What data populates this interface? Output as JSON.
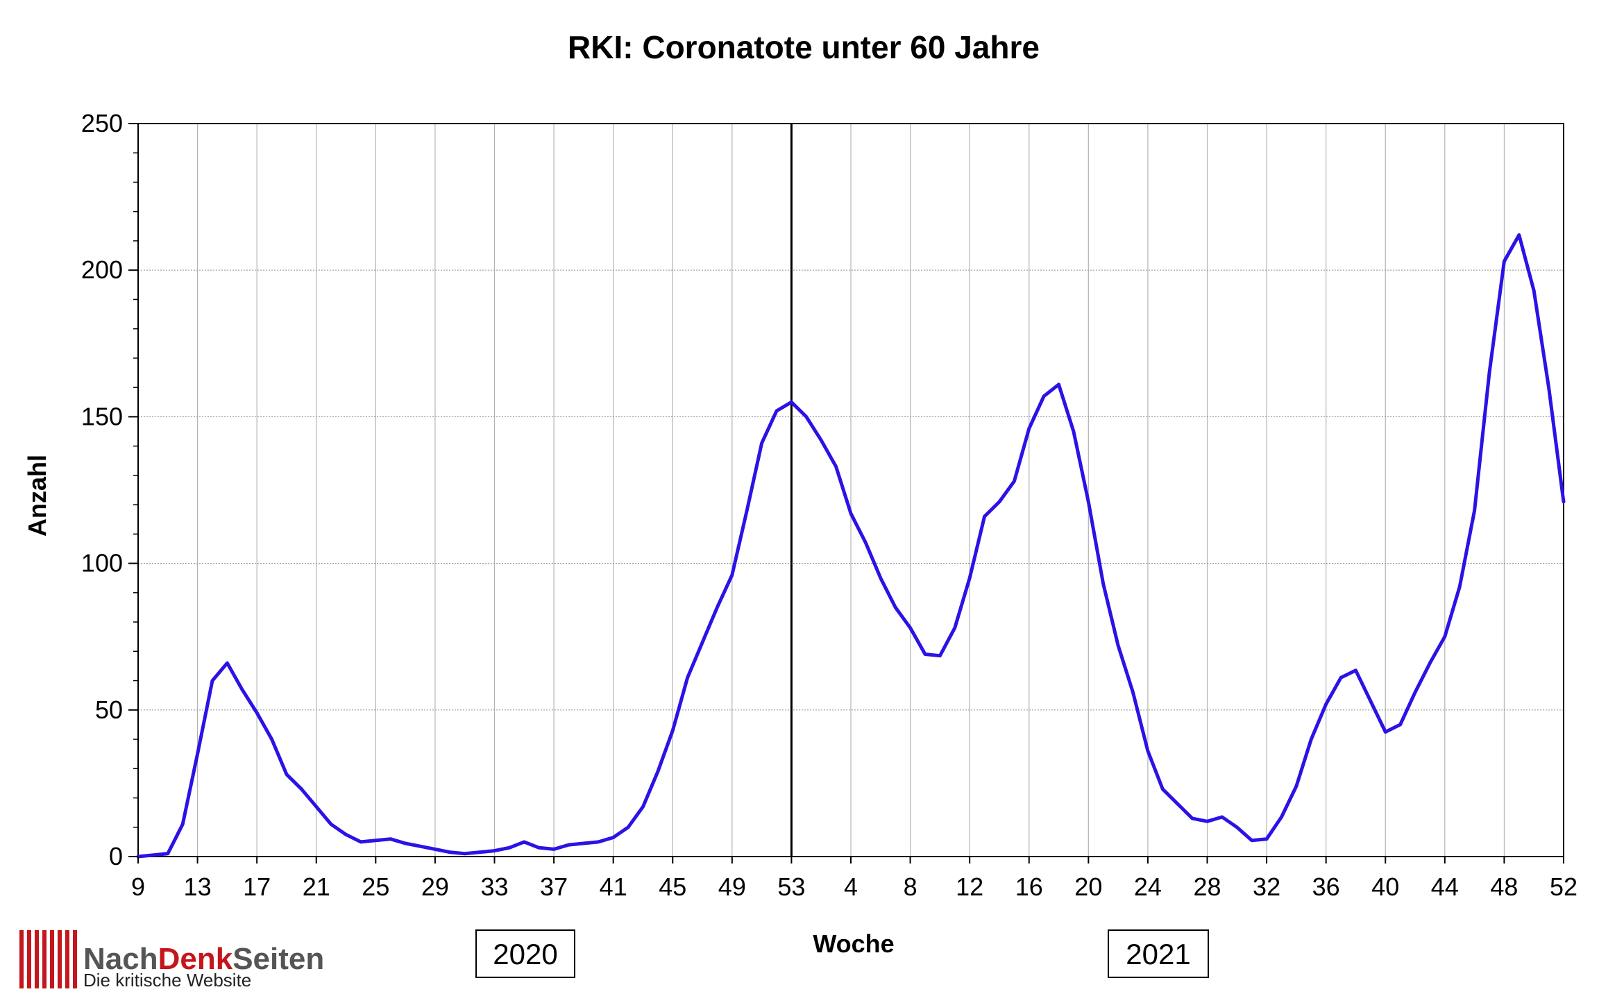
{
  "logo": {
    "part1": "Nach",
    "part2": "Denk",
    "part3": "Seiten",
    "tagline": "Die kritische Website",
    "colors": {
      "part1": "#555555",
      "part2": "#c4161c",
      "part3": "#555555",
      "bars": "#c4161c"
    }
  },
  "chart_data": {
    "type": "line",
    "title": "RKI: Coronatote unter 60 Jahre",
    "xlabel": "Woche",
    "ylabel": "Anzahl",
    "ylim": [
      0,
      250
    ],
    "yticks": [
      0,
      50,
      100,
      150,
      200,
      250
    ],
    "grid": true,
    "x_tick_labels": [
      "9",
      "13",
      "17",
      "21",
      "25",
      "29",
      "33",
      "37",
      "41",
      "45",
      "49",
      "53",
      "4",
      "8",
      "12",
      "16",
      "20",
      "24",
      "28",
      "32",
      "36",
      "40",
      "44",
      "48",
      "52"
    ],
    "year_labels": [
      "2020",
      "2021"
    ],
    "year_divider_after": "2020-W53",
    "line_color": "#2b12e6",
    "series": [
      {
        "x": [
          "2020-W9",
          "2020-W10",
          "2020-W11",
          "2020-W12",
          "2020-W13",
          "2020-W14",
          "2020-W15",
          "2020-W16",
          "2020-W17",
          "2020-W18",
          "2020-W19",
          "2020-W20",
          "2020-W21",
          "2020-W22",
          "2020-W23",
          "2020-W24",
          "2020-W25",
          "2020-W26",
          "2020-W27",
          "2020-W28",
          "2020-W29",
          "2020-W30",
          "2020-W31",
          "2020-W32",
          "2020-W33",
          "2020-W34",
          "2020-W35",
          "2020-W36",
          "2020-W37",
          "2020-W38",
          "2020-W39",
          "2020-W40",
          "2020-W41",
          "2020-W42",
          "2020-W43",
          "2020-W44",
          "2020-W45",
          "2020-W46",
          "2020-W47",
          "2020-W48",
          "2020-W49",
          "2020-W50",
          "2020-W51",
          "2020-W52",
          "2020-W53",
          "2021-W1",
          "2021-W2",
          "2021-W3",
          "2021-W4",
          "2021-W5",
          "2021-W6",
          "2021-W7",
          "2021-W8",
          "2021-W9",
          "2021-W10",
          "2021-W11",
          "2021-W12",
          "2021-W13",
          "2021-W14",
          "2021-W15",
          "2021-W16",
          "2021-W17",
          "2021-W18",
          "2021-W19",
          "2021-W20",
          "2021-W21",
          "2021-W22",
          "2021-W23",
          "2021-W24",
          "2021-W25",
          "2021-W26",
          "2021-W27",
          "2021-W28",
          "2021-W29",
          "2021-W30",
          "2021-W31",
          "2021-W32",
          "2021-W33",
          "2021-W34",
          "2021-W35",
          "2021-W36",
          "2021-W37",
          "2021-W38",
          "2021-W39",
          "2021-W40",
          "2021-W41",
          "2021-W42",
          "2021-W43",
          "2021-W44",
          "2021-W45",
          "2021-W46",
          "2021-W47",
          "2021-W48",
          "2021-W49",
          "2021-W50",
          "2021-W51",
          "2021-W52"
        ],
        "values": [
          0,
          0.5,
          1,
          11,
          35,
          60,
          66,
          57,
          49,
          40,
          28,
          23,
          17,
          11,
          7.5,
          5,
          5.5,
          6,
          4.5,
          3.5,
          2.5,
          1.5,
          1,
          1.5,
          2,
          3,
          5,
          3,
          2.5,
          4,
          4.5,
          5,
          6.5,
          10,
          17,
          29,
          43,
          61,
          73,
          85,
          96,
          118,
          141,
          152,
          155,
          150,
          142,
          133,
          117,
          107,
          95,
          85,
          78,
          69,
          68.5,
          78,
          95,
          116,
          121,
          128,
          146,
          157,
          161,
          145,
          121,
          93,
          72,
          56,
          36,
          23,
          18,
          13,
          12,
          13.5,
          10,
          5.5,
          6,
          13.5,
          24,
          40,
          52,
          61,
          63.5,
          53,
          42.5,
          45,
          56,
          66,
          75,
          92,
          118,
          165,
          203,
          212,
          193,
          160,
          121
        ]
      }
    ]
  }
}
